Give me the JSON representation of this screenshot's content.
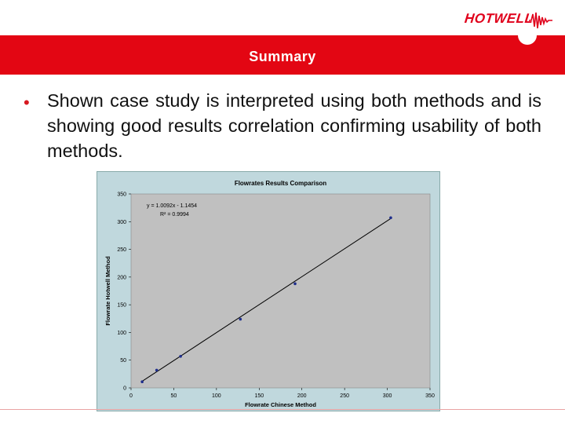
{
  "slide": {
    "title": "Summary",
    "bullet": "Shown case study is interpreted using both methods and is showing good results correlation confirming usability of both methods."
  },
  "logo": {
    "text": "HOTWELL",
    "icon": "waveform-icon"
  },
  "colors": {
    "brand_red": "#e30613",
    "chart_bg": "#c0d8dd",
    "plot_bg": "#c0c0c0",
    "series": "#1f2e8c"
  },
  "chart_data": {
    "type": "scatter",
    "title": "Flowrates Results Comparison",
    "xlabel": "Flowrate Chinese Method",
    "ylabel": "Flowrate Hotwell Method",
    "xlim": [
      0,
      350
    ],
    "ylim": [
      0,
      350
    ],
    "xticks": [
      0,
      50,
      100,
      150,
      200,
      250,
      300,
      350
    ],
    "yticks": [
      0,
      50,
      100,
      150,
      200,
      250,
      300,
      350
    ],
    "grid": false,
    "points": [
      {
        "x": 13,
        "y": 11
      },
      {
        "x": 30,
        "y": 32
      },
      {
        "x": 58,
        "y": 57
      },
      {
        "x": 128,
        "y": 124
      },
      {
        "x": 192,
        "y": 188
      },
      {
        "x": 304,
        "y": 307
      }
    ],
    "trendline": {
      "slope": 1.0092,
      "intercept": -1.1454,
      "x_range": [
        13,
        304
      ]
    },
    "annotations": [
      "y = 1.0092x - 1.1454",
      "R² = 0.9994"
    ]
  }
}
